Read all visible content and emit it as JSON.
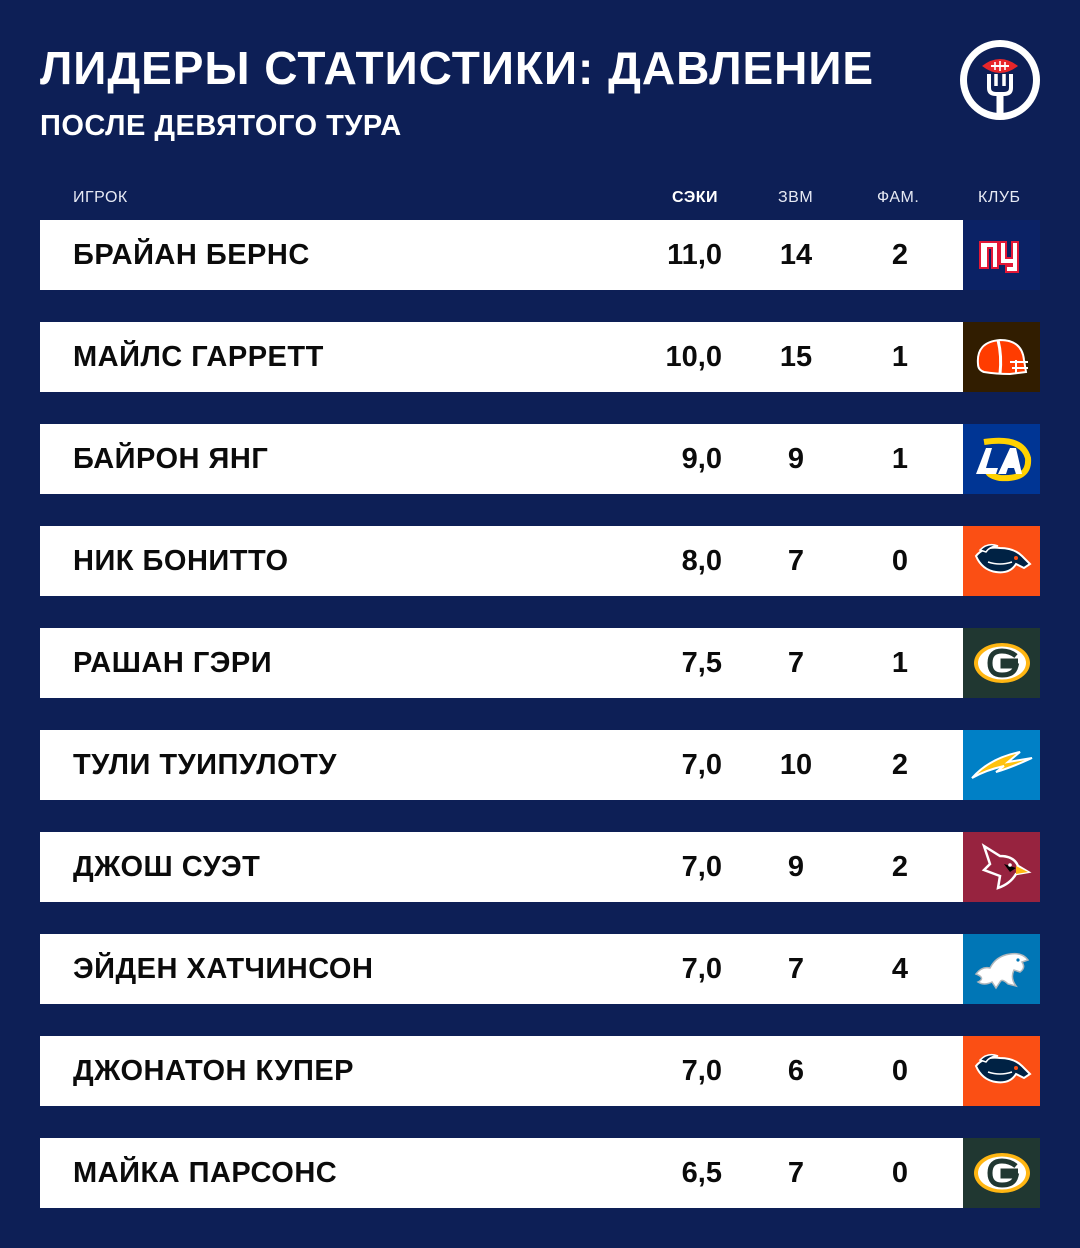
{
  "header": {
    "title": "ЛИДЕРЫ СТАТИСТИКИ: ДАВЛЕНИЕ",
    "subtitle": "ПОСЛЕ ДЕВЯТОГО ТУРА",
    "logo_icon": "football-fork-icon"
  },
  "table": {
    "columns": {
      "player": "ИГРОК",
      "sacks": "СЭКИ",
      "zvm": "ЗВМ",
      "fam": "ФАМ.",
      "club": "КЛУБ"
    },
    "rows": [
      {
        "name": "БРАЙАН БЕРНС",
        "sacks": "11,0",
        "zvm": "14",
        "fam": "2",
        "club_icon": "giants-logo-icon",
        "club_color": "#0b2265"
      },
      {
        "name": "МАЙЛС ГАРРЕТТ",
        "sacks": "10,0",
        "zvm": "15",
        "fam": "1",
        "club_icon": "browns-helmet-icon",
        "club_color": "#311d00"
      },
      {
        "name": "БАЙРОН ЯНГ",
        "sacks": "9,0",
        "zvm": "9",
        "fam": "1",
        "club_icon": "rams-logo-icon",
        "club_color": "#003594"
      },
      {
        "name": "НИК БОНИТТО",
        "sacks": "8,0",
        "zvm": "7",
        "fam": "0",
        "club_icon": "broncos-logo-icon",
        "club_color": "#fb4f14"
      },
      {
        "name": "РАШАН ГЭРИ",
        "sacks": "7,5",
        "zvm": "7",
        "fam": "1",
        "club_icon": "packers-logo-icon",
        "club_color": "#203731"
      },
      {
        "name": "ТУЛИ ТУИПУЛОТУ",
        "sacks": "7,0",
        "zvm": "10",
        "fam": "2",
        "club_icon": "chargers-bolt-icon",
        "club_color": "#0080c6"
      },
      {
        "name": "ДЖОШ СУЭТ",
        "sacks": "7,0",
        "zvm": "9",
        "fam": "2",
        "club_icon": "cardinals-logo-icon",
        "club_color": "#97233f"
      },
      {
        "name": "ЭЙДЕН ХАТЧИНСОН",
        "sacks": "7,0",
        "zvm": "7",
        "fam": "4",
        "club_icon": "lions-logo-icon",
        "club_color": "#0076b6"
      },
      {
        "name": "ДЖОНАТОН КУПЕР",
        "sacks": "7,0",
        "zvm": "6",
        "fam": "0",
        "club_icon": "broncos-logo-icon",
        "club_color": "#fb4f14"
      },
      {
        "name": "МАЙКА ПАРСОНС",
        "sacks": "6,5",
        "zvm": "7",
        "fam": "0",
        "club_icon": "packers-logo-icon",
        "club_color": "#203731"
      }
    ]
  },
  "colors": {
    "background": "#0d1f56",
    "row_background": "#ffffff",
    "text_dark": "#0b0b0b"
  }
}
